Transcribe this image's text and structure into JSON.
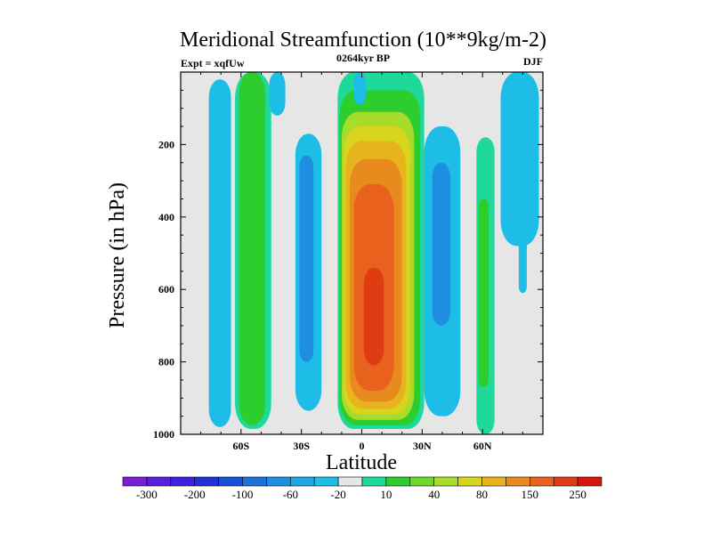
{
  "chart_data": {
    "type": "heatmap",
    "title": "Meridional Streamfunction (10**9kg/m-2)",
    "subtitle_left": "Expt = xqfUw",
    "subtitle_center": "0264kyr BP",
    "subtitle_right": "DJF",
    "xlabel": "Latitude",
    "ylabel": "Pressure (in hPa)",
    "xlim": [
      -90,
      90
    ],
    "ylim": [
      0,
      1000
    ],
    "y_inverted": true,
    "x_ticks": [
      {
        "value": -60,
        "label": "60S"
      },
      {
        "value": -30,
        "label": "30S"
      },
      {
        "value": 0,
        "label": "0"
      },
      {
        "value": 30,
        "label": "30N"
      },
      {
        "value": 60,
        "label": "60N"
      }
    ],
    "y_ticks": [
      {
        "value": 200,
        "label": "200"
      },
      {
        "value": 400,
        "label": "400"
      },
      {
        "value": 600,
        "label": "600"
      },
      {
        "value": 800,
        "label": "800"
      },
      {
        "value": 1000,
        "label": "1000"
      }
    ],
    "colorbar": {
      "colors": [
        "#7a1fd4",
        "#5a1fdc",
        "#3c22de",
        "#2330d8",
        "#1a50d8",
        "#1b72db",
        "#1e8fe0",
        "#1ea7e6",
        "#1ebde8",
        "#e6e6e6",
        "#1ed99a",
        "#2ccd2c",
        "#70d62a",
        "#a8dc2a",
        "#d8d51e",
        "#e8b41e",
        "#e88a1e",
        "#e8621e",
        "#e03c14",
        "#d8140e"
      ],
      "labels": [
        {
          "boundary": 1,
          "label": "-300"
        },
        {
          "boundary": 3,
          "label": "-200"
        },
        {
          "boundary": 5,
          "label": "-100"
        },
        {
          "boundary": 7,
          "label": "-60"
        },
        {
          "boundary": 9,
          "label": "-20"
        },
        {
          "boundary": 11,
          "label": "10"
        },
        {
          "boundary": 13,
          "label": "40"
        },
        {
          "boundary": 15,
          "label": "80"
        },
        {
          "boundary": 17,
          "label": "150"
        },
        {
          "boundary": 19,
          "label": "250"
        }
      ]
    },
    "background_color": "#e6e6e6",
    "contour_cells": [
      {
        "name": "sh-polar-cell-outer",
        "value": -20,
        "color": "#1ebde8",
        "lat": [
          -76,
          -65
        ],
        "p": [
          20,
          980
        ]
      },
      {
        "name": "sh-ferrel-cell-outer",
        "value": 10,
        "color": "#1ed99a",
        "lat": [
          -63,
          -45
        ],
        "p": [
          0,
          985
        ]
      },
      {
        "name": "sh-ferrel-cell-core",
        "value": 40,
        "color": "#2ccd2c",
        "lat": [
          -61,
          -48
        ],
        "p": [
          0,
          975
        ]
      },
      {
        "name": "sh-upper-small-cell",
        "value": -20,
        "color": "#1ebde8",
        "lat": [
          -46,
          -38
        ],
        "p": [
          0,
          120
        ]
      },
      {
        "name": "sh-hadley-cell-outer",
        "value": -20,
        "color": "#1ebde8",
        "lat": [
          -33,
          -20
        ],
        "p": [
          170,
          935
        ]
      },
      {
        "name": "sh-hadley-cell-core",
        "value": -60,
        "color": "#1e8fe0",
        "lat": [
          -31,
          -24
        ],
        "p": [
          230,
          800
        ]
      },
      {
        "name": "tropical-cell-10",
        "value": 10,
        "color": "#1ed99a",
        "lat": [
          -12,
          31
        ],
        "p": [
          0,
          985
        ]
      },
      {
        "name": "tropical-cell-40",
        "value": 40,
        "color": "#2ccd2c",
        "lat": [
          -11,
          29
        ],
        "p": [
          50,
          975
        ]
      },
      {
        "name": "tropical-cell-80",
        "value": 80,
        "color": "#a8dc2a",
        "lat": [
          -10,
          26
        ],
        "p": [
          110,
          960
        ]
      },
      {
        "name": "tropical-cell-120",
        "value": 120,
        "color": "#d8d51e",
        "lat": [
          -9,
          24
        ],
        "p": [
          150,
          945
        ]
      },
      {
        "name": "tropical-cell-150",
        "value": 150,
        "color": "#e8b41e",
        "lat": [
          -8,
          22
        ],
        "p": [
          190,
          930
        ]
      },
      {
        "name": "tropical-cell-200",
        "value": 200,
        "color": "#e88a1e",
        "lat": [
          -6,
          20
        ],
        "p": [
          240,
          910
        ]
      },
      {
        "name": "tropical-cell-250",
        "value": 250,
        "color": "#e8621e",
        "lat": [
          -4,
          16
        ],
        "p": [
          310,
          880
        ]
      },
      {
        "name": "tropical-cell-max",
        "value": 300,
        "color": "#e03c14",
        "lat": [
          1,
          11
        ],
        "p": [
          540,
          810
        ]
      },
      {
        "name": "nh-hadley-cell-outer",
        "value": -20,
        "color": "#1ebde8",
        "lat": [
          31,
          49
        ],
        "p": [
          150,
          950
        ]
      },
      {
        "name": "nh-hadley-cell-core",
        "value": -60,
        "color": "#1e8fe0",
        "lat": [
          35,
          44
        ],
        "p": [
          250,
          700
        ]
      },
      {
        "name": "nh-ferrel-cell-outer",
        "value": 10,
        "color": "#1ed99a",
        "lat": [
          57,
          66
        ],
        "p": [
          180,
          1000
        ]
      },
      {
        "name": "nh-ferrel-cell-core",
        "value": 40,
        "color": "#2ccd2c",
        "lat": [
          58,
          63
        ],
        "p": [
          350,
          870
        ]
      },
      {
        "name": "nh-polar-cell-outer",
        "value": -20,
        "color": "#1ebde8",
        "lat": [
          69,
          88
        ],
        "p": [
          0,
          480
        ]
      },
      {
        "name": "nh-secondary-cell",
        "value": -20,
        "color": "#1ebde8",
        "lat": [
          78,
          82
        ],
        "p": [
          380,
          610
        ]
      },
      {
        "name": "nh-upper-small-cell",
        "value": -20,
        "color": "#1ebde8",
        "lat": [
          -4,
          2
        ],
        "p": [
          0,
          90
        ]
      }
    ]
  }
}
